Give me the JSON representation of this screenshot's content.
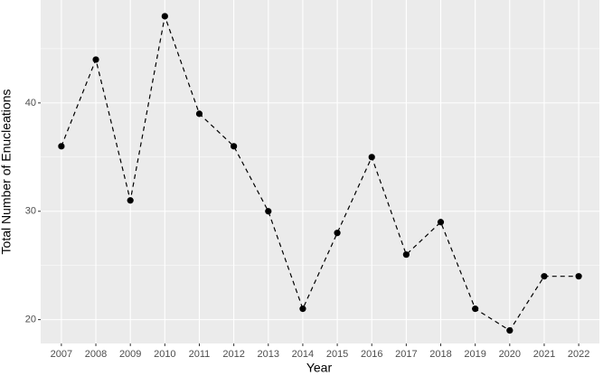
{
  "chart_data": {
    "type": "line",
    "x_label": "Year",
    "y_label": "Total Number of Enucleations",
    "categories": [
      "2007",
      "2008",
      "2009",
      "2010",
      "2011",
      "2012",
      "2013",
      "2014",
      "2015",
      "2016",
      "2017",
      "2018",
      "2019",
      "2020",
      "2021",
      "2022"
    ],
    "values": [
      36,
      44,
      31,
      48,
      39,
      36,
      30,
      21,
      28,
      35,
      26,
      29,
      21,
      19,
      24,
      24
    ],
    "color": "#000000",
    "line_style": "dashed",
    "ylim": [
      17.8,
      49.5
    ],
    "yticks": [
      20,
      30,
      40
    ],
    "y_minor_grid": [
      25,
      35,
      45
    ],
    "grid": true
  }
}
